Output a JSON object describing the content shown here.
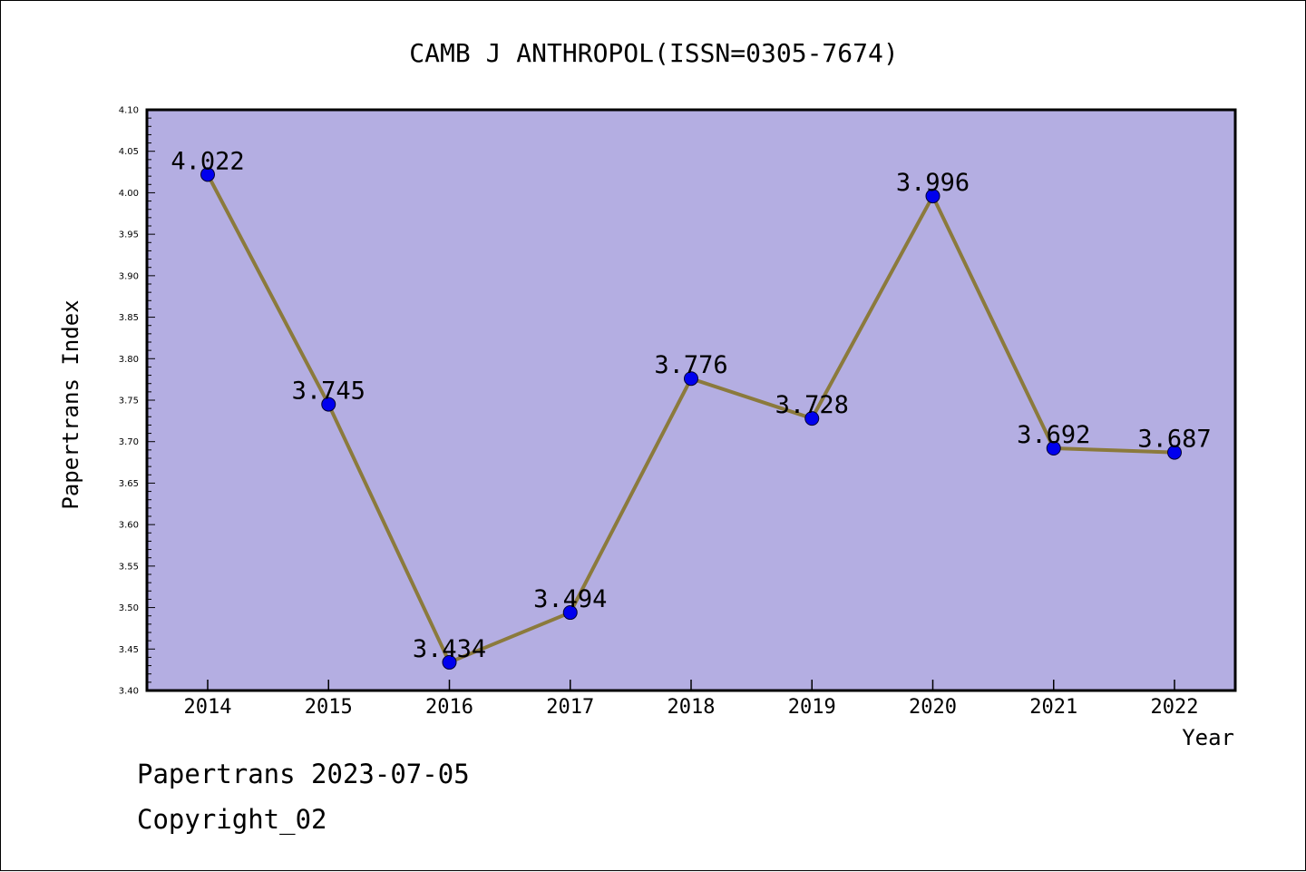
{
  "chart_data": {
    "type": "line",
    "title": "CAMB J ANTHROPOL(ISSN=0305-7674)",
    "xlabel": "Year",
    "ylabel": "Papertrans Index",
    "categories": [
      "2014",
      "2015",
      "2016",
      "2017",
      "2018",
      "2019",
      "2020",
      "2021",
      "2022"
    ],
    "series": [
      {
        "values": [
          4.022,
          3.745,
          3.434,
          3.494,
          3.776,
          3.728,
          3.996,
          3.692,
          3.687
        ]
      }
    ],
    "data_labels": [
      "4.022",
      "3.745",
      "3.434",
      "3.494",
      "3.776",
      "3.728",
      "3.996",
      "3.692",
      "3.687"
    ],
    "ylim": [
      3.4,
      4.1
    ],
    "yticks": [
      "3.40",
      "3.45",
      "3.50",
      "3.55",
      "3.60",
      "3.65",
      "3.70",
      "3.75",
      "3.80",
      "3.85",
      "3.90",
      "3.95",
      "4.00",
      "4.05",
      "4.10"
    ],
    "grid": false,
    "colors": {
      "plot_background": "#b4aee2",
      "line": "#8b7a3c",
      "marker": "#0000ee"
    }
  },
  "footer": {
    "line1": "Papertrans 2023-07-05",
    "line2": "Copyright_02"
  }
}
